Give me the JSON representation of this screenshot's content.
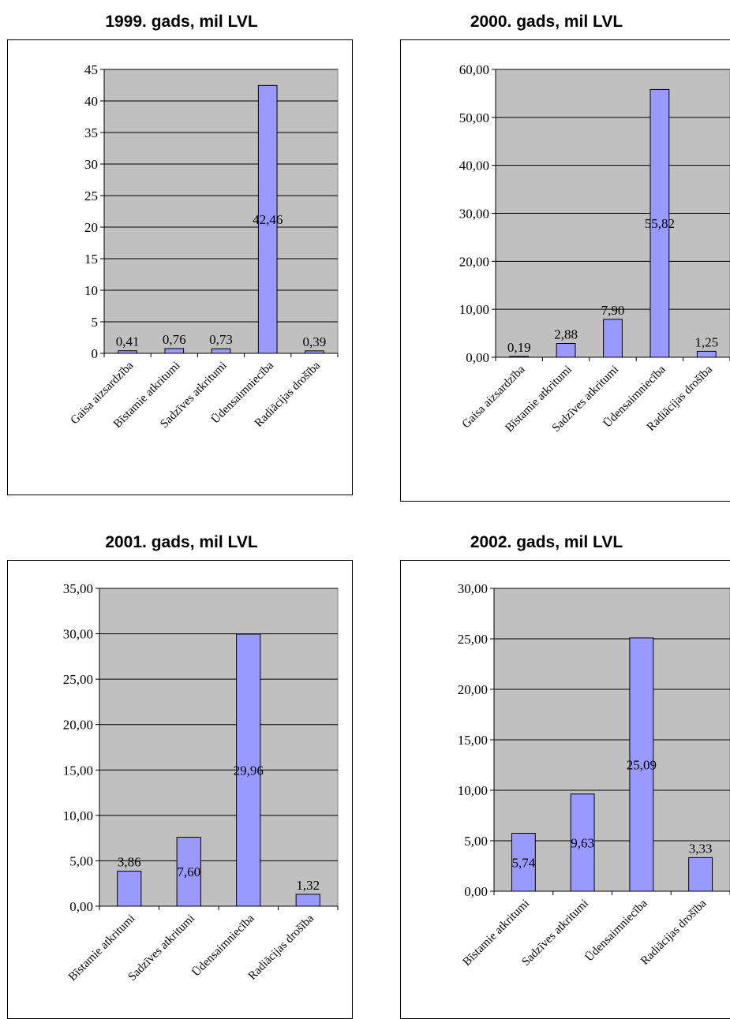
{
  "chart_data": [
    {
      "type": "bar",
      "title": "1999. gads, mil LVL",
      "categories": [
        "Gaisa aizsardzība",
        "Bīstamie atkritumi",
        "Sadzīves atkritumi",
        "Ūdensaimniecība",
        "Radiācijas drošība"
      ],
      "values": [
        0.41,
        0.76,
        0.73,
        42.46,
        0.39
      ],
      "data_labels": [
        "0,41",
        "0,76",
        "0,73",
        "42,46",
        "0,39"
      ],
      "ylim": [
        0,
        45
      ],
      "y_ticks": [
        "0",
        "5",
        "10",
        "15",
        "20",
        "25",
        "30",
        "35",
        "40",
        "45"
      ],
      "grid": true,
      "colors": {
        "bar": "#9999ff",
        "plot_bg": "#c0c0c0"
      }
    },
    {
      "type": "bar",
      "title": "2000. gads, mil LVL",
      "categories": [
        "Gaisa aizsardzība",
        "Bīstamie atkritumi",
        "Sadzīves atkritumi",
        "Ūdensaimniecība",
        "Radiācijas drošība"
      ],
      "values": [
        0.19,
        2.88,
        7.9,
        55.82,
        1.25
      ],
      "data_labels": [
        "0,19",
        "2,88",
        "7,90",
        "55,82",
        "1,25"
      ],
      "ylim": [
        0,
        60
      ],
      "y_ticks": [
        "0,00",
        "10,00",
        "20,00",
        "30,00",
        "40,00",
        "50,00",
        "60,00"
      ],
      "grid": true,
      "colors": {
        "bar": "#9999ff",
        "plot_bg": "#c0c0c0"
      }
    },
    {
      "type": "bar",
      "title": "2001. gads, mil LVL",
      "categories": [
        "Bīstamie atkritumi",
        "Sadzīves atkritumi",
        "Ūdensaimniecība",
        "Radiācijas drošība"
      ],
      "values": [
        3.86,
        7.6,
        29.96,
        1.32
      ],
      "data_labels": [
        "3,86",
        "7,60",
        "29,96",
        "1,32"
      ],
      "ylim": [
        0,
        35
      ],
      "y_ticks": [
        "0,00",
        "5,00",
        "10,00",
        "15,00",
        "20,00",
        "25,00",
        "30,00",
        "35,00"
      ],
      "grid": true,
      "colors": {
        "bar": "#9999ff",
        "plot_bg": "#c0c0c0"
      }
    },
    {
      "type": "bar",
      "title": "2002. gads, mil LVL",
      "categories": [
        "Bīstamie atkritumi",
        "Sadzīves atkritumi",
        "Ūdensaimniecība",
        "Radiācijas drošība"
      ],
      "values": [
        5.74,
        9.63,
        25.09,
        3.33
      ],
      "data_labels": [
        "5,74",
        "9,63",
        "25,09",
        "3,33"
      ],
      "ylim": [
        0,
        30
      ],
      "y_ticks": [
        "0,00",
        "5,00",
        "10,00",
        "15,00",
        "20,00",
        "25,00",
        "30,00"
      ],
      "grid": true,
      "colors": {
        "bar": "#9999ff",
        "plot_bg": "#c0c0c0"
      }
    }
  ]
}
